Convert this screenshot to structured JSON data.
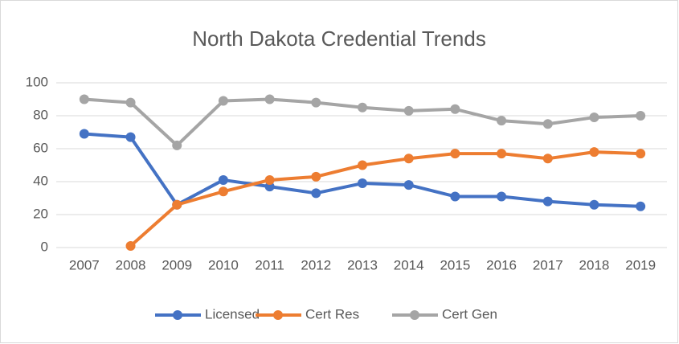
{
  "chart_data": {
    "type": "line",
    "title": "North Dakota Credential Trends",
    "categories": [
      "2007",
      "2008",
      "2009",
      "2010",
      "2011",
      "2012",
      "2013",
      "2014",
      "2015",
      "2016",
      "2017",
      "2018",
      "2019"
    ],
    "series": [
      {
        "name": "Licensed",
        "color": "#4472c4",
        "values": [
          69,
          67,
          26,
          41,
          37,
          33,
          39,
          38,
          31,
          31,
          28,
          26,
          25
        ]
      },
      {
        "name": "Cert Res",
        "color": "#ed7d31",
        "values": [
          null,
          1,
          26,
          34,
          41,
          43,
          50,
          54,
          57,
          57,
          54,
          58,
          57
        ]
      },
      {
        "name": "Cert Gen",
        "color": "#a5a5a5",
        "values": [
          90,
          88,
          62,
          89,
          90,
          88,
          85,
          83,
          84,
          77,
          75,
          79,
          80
        ]
      }
    ],
    "ylim": [
      0,
      100
    ],
    "yticks": [
      0,
      20,
      40,
      60,
      80,
      100
    ],
    "grid": true,
    "legend": "bottom"
  }
}
